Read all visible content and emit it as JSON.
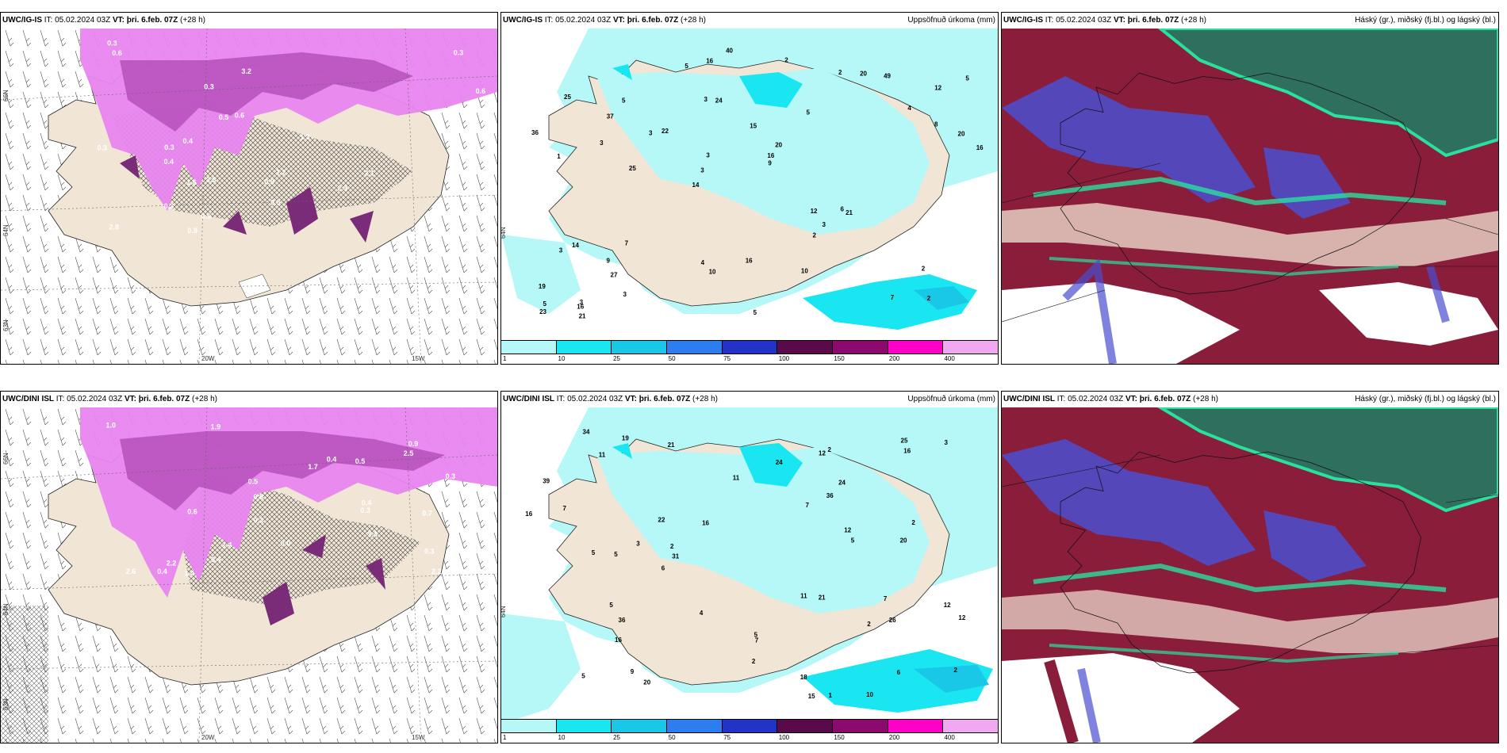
{
  "panels": [
    {
      "model": "UWC/IG-IS",
      "it": "IT: 05.02.2024 03Z",
      "vt_label": "VT:",
      "vt_value": "þri. 6.feb. 07Z",
      "lead": "(+28 h)",
      "right": "",
      "lat_labels": [
        "66N",
        "64N",
        "63N"
      ],
      "lon_labels": [
        "20W",
        "15W"
      ]
    },
    {
      "model": "UWC/IG-IS",
      "it": "IT: 05.02.2024 03Z",
      "vt_label": "VT:",
      "vt_value": "þri. 6.feb. 07Z",
      "lead": "(+28 h)",
      "right": "Uppsöfnuð úrkoma (mm)",
      "lat_labels": [
        "64N"
      ],
      "lon_labels": []
    },
    {
      "model": "UWC/IG-IS",
      "it": "IT: 05.02.2024 03Z",
      "vt_label": "VT:",
      "vt_value": "þri. 6.feb. 07Z",
      "lead": "(+28 h)",
      "right": "Háský (gr.), miðský (fj.bl.) og lágský (bl.)",
      "lat_labels": [],
      "lon_labels": []
    },
    {
      "model": "UWC/DINI ISL",
      "it": "IT: 05.02.2024 03Z",
      "vt_label": "VT:",
      "vt_value": "þri. 6.feb. 07Z",
      "lead": "(+28 h)",
      "right": "",
      "lat_labels": [
        "66N",
        "64N",
        "63N"
      ],
      "lon_labels": [
        "20W",
        "15W"
      ]
    },
    {
      "model": "UWC/DINI ISL",
      "it": "IT: 05.02.2024 03Z",
      "vt_label": "VT:",
      "vt_value": "þri. 6.feb. 07Z",
      "lead": "(+28 h)",
      "right": "Uppsöfnuð úrkoma (mm)",
      "lat_labels": [
        "64N"
      ],
      "lon_labels": []
    },
    {
      "model": "UWC/DINI ISL",
      "it": "IT: 05.02.2024 03Z",
      "vt_label": "VT:",
      "vt_value": "þri. 6.feb. 07Z",
      "lead": "(+28 h)",
      "right": "Háský (gr.), miðský (fj.bl.) og lágský (bl.)",
      "lat_labels": [],
      "lon_labels": []
    }
  ],
  "legend": {
    "ticks": [
      "1",
      "10",
      "25",
      "50",
      "75",
      "100",
      "150",
      "200",
      "400"
    ],
    "colors": [
      "#b6f7f7",
      "#19e6f0",
      "#19c8e6",
      "#2b7df0",
      "#2233c8",
      "#5a0a4a",
      "#8c0a6e",
      "#ff00c8",
      "#f0a8f0"
    ]
  },
  "precip_top": [
    "2",
    "1",
    "12",
    "14",
    "5",
    "3",
    "3",
    "15",
    "14",
    "22",
    "19",
    "27",
    "24",
    "20",
    "21",
    "25",
    "16",
    "16",
    "12",
    "8",
    "3",
    "4",
    "3",
    "5",
    "2",
    "7",
    "7",
    "2",
    "6",
    "5",
    "3",
    "3",
    "2",
    "3",
    "20",
    "16",
    "5",
    "10",
    "9",
    "3",
    "4",
    "5",
    "3",
    "10",
    "9",
    "21",
    "23",
    "16",
    "49",
    "40",
    "25",
    "36",
    "37",
    "20",
    "16",
    "2",
    "5"
  ],
  "precip_bottom": [
    "12",
    "10",
    "7",
    "5",
    "5",
    "22",
    "21",
    "24",
    "15",
    "20",
    "21",
    "16",
    "16",
    "12",
    "20",
    "11",
    "16",
    "9",
    "12",
    "11",
    "7",
    "7",
    "6",
    "5",
    "3",
    "7",
    "2",
    "4",
    "5",
    "3",
    "2",
    "2",
    "2",
    "18",
    "12",
    "5",
    "39",
    "25",
    "31",
    "34",
    "26",
    "36",
    "36",
    "19",
    "24",
    "11",
    "16",
    "2",
    "2",
    "1",
    "6",
    "5"
  ],
  "cloud_snow_top": [
    "0.6",
    "0.3",
    "0.3",
    "0.3",
    "0.6",
    "2.3",
    "3.2",
    "3.5",
    "2.8",
    "2.1",
    "1.6",
    "1.3",
    "0.9",
    "0.4",
    "1.2",
    "0.5",
    "0.8",
    "0.3",
    "0.3",
    "0.6",
    "0.4",
    "0.5",
    "0.5",
    "0.4",
    "0.3"
  ],
  "cloud_snow_bottom": [
    "2.6",
    "3.4",
    "0.4",
    "0.3",
    "2.2",
    "2.5",
    "1.9",
    "3.0",
    "1.7",
    "1.4",
    "0.7",
    "2.2",
    "0.9",
    "1.4",
    "1.0",
    "0.5",
    "0.6",
    "0.8",
    "0.4",
    "0.3",
    "0.5",
    "0.3",
    "0.4",
    "0.4",
    "0.3"
  ],
  "colors": {
    "land": "#f1e6d6",
    "precip_light": "#b6f7f7",
    "precip_mid": "#19e6f0",
    "snow_light": "#e885ef",
    "snow_dark": "#7a2c78",
    "cloud_high": "#2f6f5e",
    "cloud_mid": "#8a1d3a",
    "cloud_low": "#4a4fd0",
    "cloud_edge": "#29e0a0"
  }
}
